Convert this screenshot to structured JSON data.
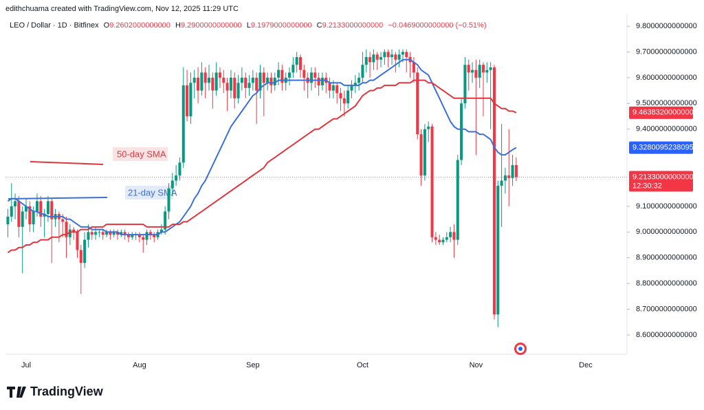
{
  "header": {
    "credit": "edithchuama created with TradingView.com, Nov 12, 2025 11:29 UTC",
    "symbol": "LEO / Dollar · 1D · Bitfinex",
    "ohlc": [
      {
        "key": "O",
        "value": "9.2602000000000"
      },
      {
        "key": "H",
        "value": "9.2900000000000"
      },
      {
        "key": "L",
        "value": "9.1979000000000"
      },
      {
        "key": "C",
        "value": "9.2133000000000"
      }
    ],
    "change": "−0.0469000000000 (−0.51%)"
  },
  "logo": "TradingView",
  "chart_data": {
    "type": "candlestick",
    "categories": [
      null,
      null,
      null,
      null,
      null,
      "Jul",
      null,
      null,
      null,
      null,
      null,
      null,
      null,
      null,
      null,
      null,
      null,
      null,
      null,
      null,
      null,
      null,
      null,
      null,
      null,
      null,
      null,
      null,
      null,
      null,
      null,
      null,
      null,
      null,
      null,
      null,
      "Aug",
      null,
      null,
      null,
      null,
      null,
      null,
      null,
      null,
      null,
      null,
      null,
      null,
      null,
      null,
      null,
      null,
      null,
      null,
      null,
      null,
      null,
      null,
      null,
      null,
      null,
      null,
      null,
      null,
      null,
      null,
      "Sep",
      null,
      null,
      null,
      null,
      null,
      null,
      null,
      null,
      null,
      null,
      null,
      null,
      null,
      null,
      null,
      null,
      null,
      null,
      null,
      null,
      null,
      null,
      null,
      null,
      null,
      null,
      null,
      null,
      null,
      "Oct",
      null,
      null,
      null,
      null,
      null,
      null,
      null,
      null,
      null,
      null,
      null,
      null,
      null,
      null,
      null,
      null,
      null,
      null,
      null,
      null,
      null,
      null,
      null,
      null,
      null,
      null,
      null,
      null,
      null,
      null,
      "Nov",
      null,
      null,
      null,
      null,
      null,
      null,
      null,
      null,
      null,
      null,
      null,
      null,
      null,
      null,
      null,
      null,
      null,
      null,
      null,
      null,
      null,
      null,
      null,
      null,
      null,
      null,
      null,
      null,
      null,
      "Dec",
      null,
      null,
      null,
      null,
      null,
      null,
      null,
      null,
      null
    ],
    "open": [
      9.03,
      9.06,
      9.1,
      9.12,
      9.02,
      9.08,
      9.1,
      9.03,
      9.08,
      9.12,
      9.06,
      9.07,
      9.12,
      9.05,
      9.07,
      9.05,
      9.04,
      8.98,
      9.01,
      9.0,
      8.93,
      8.88,
      8.97,
      9.0,
      8.99,
      9.0,
      9.0,
      8.99,
      9.0,
      8.99,
      9.0,
      8.99,
      9.0,
      8.99,
      8.98,
      8.99,
      8.99,
      8.98,
      8.97,
      9.0,
      8.99,
      8.98,
      9.0,
      9.01,
      9.08,
      9.17,
      9.2,
      9.22,
      9.27,
      9.57,
      9.45,
      9.58,
      9.6,
      9.55,
      9.62,
      9.58,
      9.6,
      9.55,
      9.62,
      9.6,
      9.58,
      9.55,
      9.6,
      9.52,
      9.58,
      9.6,
      9.56,
      9.58,
      9.6,
      9.55,
      9.62,
      9.58,
      9.6,
      9.57,
      9.6,
      9.63,
      9.58,
      9.6,
      9.62,
      9.65,
      9.68,
      9.63,
      9.6,
      9.58,
      9.62,
      9.6,
      9.57,
      9.6,
      9.58,
      9.55,
      9.57,
      9.54,
      9.52,
      9.5,
      9.55,
      9.57,
      9.58,
      9.6,
      9.65,
      9.68,
      9.66,
      9.69,
      9.67,
      9.68,
      9.7,
      9.68,
      9.69,
      9.67,
      9.69,
      9.7,
      9.68,
      9.66,
      9.62,
      9.38,
      9.22,
      9.4,
      9.41,
      8.98,
      8.97,
      8.96,
      8.97,
      8.98,
      9.0,
      8.97,
      9.28,
      9.5,
      9.65,
      9.62,
      9.63,
      9.6,
      9.65,
      9.62,
      9.63,
      9.64,
      8.68,
      9.18,
      9.2,
      9.22,
      9.21,
      9.2602,
      null,
      null,
      null,
      null,
      null,
      null,
      null,
      null,
      null,
      null,
      null,
      null,
      null,
      null,
      null,
      null,
      null,
      null,
      null,
      null,
      null,
      null,
      null,
      null,
      null,
      null,
      null,
      null
    ],
    "high": [
      9.09,
      9.19,
      9.15,
      9.14,
      9.1,
      9.13,
      9.12,
      9.1,
      9.15,
      9.14,
      9.09,
      9.14,
      9.13,
      9.09,
      9.08,
      9.07,
      9.06,
      9.03,
      9.02,
      9.01,
      8.95,
      9.0,
      9.03,
      9.01,
      9.02,
      9.01,
      9.01,
      9.01,
      9.01,
      9.01,
      9.01,
      9.01,
      9.01,
      9.0,
      9.0,
      9.0,
      9.0,
      8.99,
      9.01,
      9.01,
      9.0,
      9.01,
      9.03,
      9.1,
      9.19,
      9.23,
      9.26,
      9.29,
      9.64,
      9.63,
      9.62,
      9.63,
      9.64,
      9.66,
      9.64,
      9.65,
      9.62,
      9.66,
      9.64,
      9.63,
      9.6,
      9.63,
      9.62,
      9.61,
      9.64,
      9.62,
      9.61,
      9.63,
      9.62,
      9.65,
      9.64,
      9.62,
      9.62,
      9.62,
      9.66,
      9.65,
      9.62,
      9.64,
      9.68,
      9.7,
      9.69,
      9.65,
      9.62,
      9.64,
      9.64,
      9.62,
      9.62,
      9.62,
      9.6,
      9.59,
      9.58,
      9.56,
      9.55,
      9.57,
      9.59,
      9.61,
      9.62,
      9.7,
      9.71,
      9.7,
      9.71,
      9.7,
      9.7,
      9.71,
      9.71,
      9.71,
      9.7,
      9.71,
      9.71,
      9.71,
      9.7,
      9.68,
      9.64,
      9.4,
      9.42,
      9.43,
      9.42,
      9.0,
      8.99,
      8.98,
      9.0,
      9.02,
      9.03,
      9.3,
      9.52,
      9.68,
      9.67,
      9.66,
      9.67,
      9.67,
      9.66,
      9.66,
      9.66,
      9.65,
      9.2,
      9.42,
      9.25,
      9.4,
      9.3,
      9.29,
      null,
      null,
      null,
      null,
      null,
      null,
      null,
      null,
      null,
      null,
      null,
      null,
      null,
      null,
      null,
      null,
      null,
      null,
      null,
      null,
      null,
      null,
      null,
      null,
      null,
      null,
      null,
      null
    ],
    "low": [
      8.98,
      9.04,
      9.05,
      8.98,
      8.84,
      9.05,
      9.0,
      9.0,
      9.06,
      9.02,
      8.98,
      9.04,
      8.88,
      9.02,
      8.96,
      8.98,
      8.9,
      8.95,
      8.97,
      8.9,
      8.76,
      8.86,
      8.94,
      8.97,
      8.97,
      8.98,
      8.97,
      8.98,
      8.97,
      8.98,
      8.97,
      8.98,
      8.97,
      8.96,
      8.97,
      8.97,
      8.96,
      8.92,
      8.95,
      8.97,
      8.96,
      8.97,
      8.99,
      8.99,
      9.05,
      9.14,
      9.18,
      9.2,
      9.25,
      9.43,
      9.42,
      9.52,
      9.5,
      9.53,
      9.52,
      9.55,
      9.48,
      9.53,
      9.56,
      9.54,
      9.47,
      9.52,
      9.48,
      9.5,
      9.55,
      9.52,
      9.53,
      9.55,
      9.42,
      9.52,
      9.45,
      9.55,
      9.54,
      9.55,
      9.57,
      9.55,
      9.55,
      9.57,
      9.6,
      9.62,
      9.6,
      9.55,
      9.52,
      9.55,
      9.56,
      9.53,
      9.55,
      9.54,
      9.52,
      9.52,
      9.5,
      9.47,
      9.45,
      9.48,
      9.52,
      9.54,
      9.55,
      9.58,
      9.62,
      9.6,
      9.63,
      9.63,
      9.64,
      9.65,
      9.64,
      9.65,
      9.62,
      9.64,
      9.66,
      9.62,
      9.6,
      9.58,
      9.36,
      9.18,
      9.2,
      9.35,
      8.96,
      8.95,
      8.95,
      8.95,
      8.96,
      8.96,
      8.9,
      8.95,
      9.26,
      9.48,
      9.55,
      9.58,
      9.3,
      9.56,
      9.45,
      9.58,
      9.4,
      8.66,
      8.63,
      9.02,
      9.15,
      9.1,
      9.18,
      9.1979,
      null,
      null,
      null,
      null,
      null,
      null,
      null,
      null,
      null,
      null,
      null,
      null,
      null,
      null,
      null,
      null,
      null,
      null,
      null,
      null,
      null,
      null,
      null,
      null,
      null,
      null,
      null,
      null
    ],
    "close": [
      9.06,
      9.1,
      9.12,
      9.02,
      9.08,
      9.1,
      9.03,
      9.08,
      9.12,
      9.06,
      9.07,
      9.12,
      9.05,
      9.07,
      9.05,
      9.04,
      8.98,
      9.01,
      9.0,
      8.93,
      8.88,
      8.97,
      9.0,
      8.99,
      9.0,
      9.0,
      8.99,
      9.0,
      8.99,
      9.0,
      8.99,
      9.0,
      8.99,
      8.98,
      8.99,
      8.99,
      8.98,
      8.97,
      9.0,
      8.99,
      8.98,
      9.0,
      9.01,
      9.08,
      9.17,
      9.2,
      9.22,
      9.27,
      9.57,
      9.45,
      9.58,
      9.6,
      9.55,
      9.62,
      9.58,
      9.6,
      9.55,
      9.62,
      9.6,
      9.58,
      9.55,
      9.6,
      9.52,
      9.58,
      9.6,
      9.56,
      9.58,
      9.6,
      9.55,
      9.62,
      9.58,
      9.6,
      9.57,
      9.6,
      9.63,
      9.58,
      9.6,
      9.62,
      9.65,
      9.68,
      9.63,
      9.6,
      9.58,
      9.62,
      9.6,
      9.57,
      9.6,
      9.58,
      9.55,
      9.57,
      9.54,
      9.52,
      9.5,
      9.55,
      9.57,
      9.58,
      9.6,
      9.65,
      9.68,
      9.66,
      9.69,
      9.67,
      9.68,
      9.7,
      9.68,
      9.69,
      9.67,
      9.69,
      9.7,
      9.68,
      9.66,
      9.62,
      9.38,
      9.22,
      9.4,
      9.41,
      8.98,
      8.97,
      8.96,
      8.97,
      8.98,
      9.0,
      8.97,
      9.28,
      9.5,
      9.65,
      9.62,
      9.63,
      9.6,
      9.65,
      9.62,
      9.63,
      9.64,
      8.68,
      9.18,
      9.2,
      9.22,
      9.21,
      9.26,
      9.2133,
      null,
      null,
      null,
      null,
      null,
      null,
      null,
      null,
      null,
      null,
      null,
      null,
      null,
      null,
      null,
      null,
      null,
      null,
      null,
      null,
      null,
      null,
      null,
      null,
      null,
      null,
      null,
      null
    ],
    "up_color": "#089981",
    "down_color": "#f23645",
    "series": [
      {
        "name": "21-day SMA",
        "color": "#3b6fd8",
        "values": [
          9.12,
          9.13,
          9.13,
          9.12,
          9.11,
          9.1,
          9.09,
          9.08,
          9.08,
          9.07,
          9.07,
          9.06,
          9.06,
          9.06,
          9.06,
          9.06,
          9.05,
          9.05,
          9.04,
          9.03,
          9.02,
          9.02,
          9.02,
          9.01,
          9.01,
          9.01,
          9.01,
          9.0,
          9.0,
          9.0,
          9.0,
          8.99,
          8.99,
          8.99,
          8.99,
          8.99,
          8.99,
          8.99,
          8.99,
          8.99,
          8.99,
          8.99,
          9.0,
          9.0,
          9.01,
          9.02,
          9.03,
          9.04,
          9.06,
          9.08,
          9.1,
          9.13,
          9.15,
          9.18,
          9.2,
          9.23,
          9.26,
          9.29,
          9.32,
          9.35,
          9.38,
          9.41,
          9.43,
          9.45,
          9.47,
          9.49,
          9.51,
          9.53,
          9.54,
          9.56,
          9.57,
          9.58,
          9.58,
          9.58,
          9.59,
          9.59,
          9.59,
          9.59,
          9.59,
          9.59,
          9.59,
          9.59,
          9.59,
          9.59,
          9.59,
          9.59,
          9.59,
          9.59,
          9.58,
          9.58,
          9.58,
          9.58,
          9.57,
          9.57,
          9.57,
          9.57,
          9.57,
          9.58,
          9.58,
          9.59,
          9.59,
          9.6,
          9.61,
          9.62,
          9.63,
          9.64,
          9.65,
          9.66,
          9.67,
          9.67,
          9.67,
          9.66,
          9.65,
          9.63,
          9.62,
          9.61,
          9.58,
          9.55,
          9.52,
          9.49,
          9.46,
          9.43,
          9.41,
          9.4,
          9.4,
          9.4,
          9.39,
          9.39,
          9.39,
          9.38,
          9.38,
          9.37,
          9.36,
          9.33,
          9.31,
          9.3,
          9.3,
          9.31,
          9.32,
          9.3280095238095,
          null,
          null,
          null,
          null,
          null,
          null,
          null,
          null,
          null,
          null,
          null,
          null,
          null,
          null,
          null,
          null,
          null,
          null,
          null,
          null,
          null,
          null,
          null,
          null,
          null,
          null,
          null,
          null
        ]
      },
      {
        "name": "50-day SMA",
        "color": "#e0353d",
        "values": [
          8.92,
          8.93,
          8.93,
          8.94,
          8.94,
          8.95,
          8.95,
          8.96,
          8.96,
          8.97,
          8.97,
          8.97,
          8.98,
          8.98,
          8.98,
          8.99,
          8.99,
          9.0,
          9.0,
          9.0,
          9.01,
          9.01,
          9.01,
          9.02,
          9.02,
          9.02,
          9.02,
          9.03,
          9.03,
          9.03,
          9.03,
          9.03,
          9.03,
          9.03,
          9.03,
          9.03,
          9.03,
          9.03,
          9.02,
          9.02,
          9.02,
          9.02,
          9.02,
          9.02,
          9.02,
          9.03,
          9.03,
          9.03,
          9.04,
          9.04,
          9.05,
          9.06,
          9.07,
          9.08,
          9.09,
          9.1,
          9.11,
          9.12,
          9.13,
          9.14,
          9.15,
          9.16,
          9.17,
          9.18,
          9.19,
          9.2,
          9.21,
          9.22,
          9.23,
          9.24,
          9.25,
          9.27,
          9.28,
          9.29,
          9.3,
          9.31,
          9.32,
          9.33,
          9.34,
          9.35,
          9.36,
          9.37,
          9.38,
          9.39,
          9.4,
          9.4,
          9.41,
          9.42,
          9.43,
          9.44,
          9.44,
          9.45,
          9.46,
          9.47,
          9.48,
          9.49,
          9.51,
          9.53,
          9.54,
          9.55,
          9.55,
          9.56,
          9.56,
          9.57,
          9.57,
          9.57,
          9.57,
          9.58,
          9.58,
          9.58,
          9.58,
          9.59,
          9.59,
          9.59,
          9.59,
          9.58,
          9.58,
          9.57,
          9.56,
          9.55,
          9.54,
          9.53,
          9.52,
          9.52,
          9.52,
          9.52,
          9.52,
          9.52,
          9.52,
          9.52,
          9.52,
          9.52,
          9.52,
          9.5,
          9.49,
          9.48,
          9.48,
          9.47,
          9.47,
          9.463832,
          null,
          null,
          null,
          null,
          null,
          null,
          null,
          null,
          null,
          null,
          null,
          null,
          null,
          null,
          null,
          null,
          null,
          null,
          null,
          null,
          null,
          null,
          null,
          null,
          null,
          null,
          null,
          null
        ]
      }
    ],
    "ylim": [
      8.525,
      9.827
    ],
    "yticks": [
      {
        "value": 8.6,
        "label": "8.6000000000000"
      },
      {
        "value": 8.7,
        "label": "8.7000000000000"
      },
      {
        "value": 8.8,
        "label": "8.8000000000000"
      },
      {
        "value": 8.9,
        "label": "8.9000000000000"
      },
      {
        "value": 9.0,
        "label": "9.0000000000000"
      },
      {
        "value": 9.1,
        "label": "9.1000000000000"
      },
      {
        "value": 9.4,
        "label": "9.4000000000000"
      },
      {
        "value": 9.5,
        "label": "9.5000000000000"
      },
      {
        "value": 9.6,
        "label": "9.6000000000000"
      },
      {
        "value": 9.7,
        "label": "9.7000000000000"
      },
      {
        "value": 9.8,
        "label": "9.8000000000000"
      }
    ],
    "price_labels": [
      {
        "value": 9.463832,
        "label": "9.4638320000000",
        "color": "#f23645"
      },
      {
        "value": 9.3280095238095,
        "label": "9.3280095238095",
        "color": "#2962ff"
      },
      {
        "value": 9.2133,
        "label": "9.2133000000000",
        "color": "#f23645"
      }
    ],
    "countdown": "12:30:32"
  }
}
